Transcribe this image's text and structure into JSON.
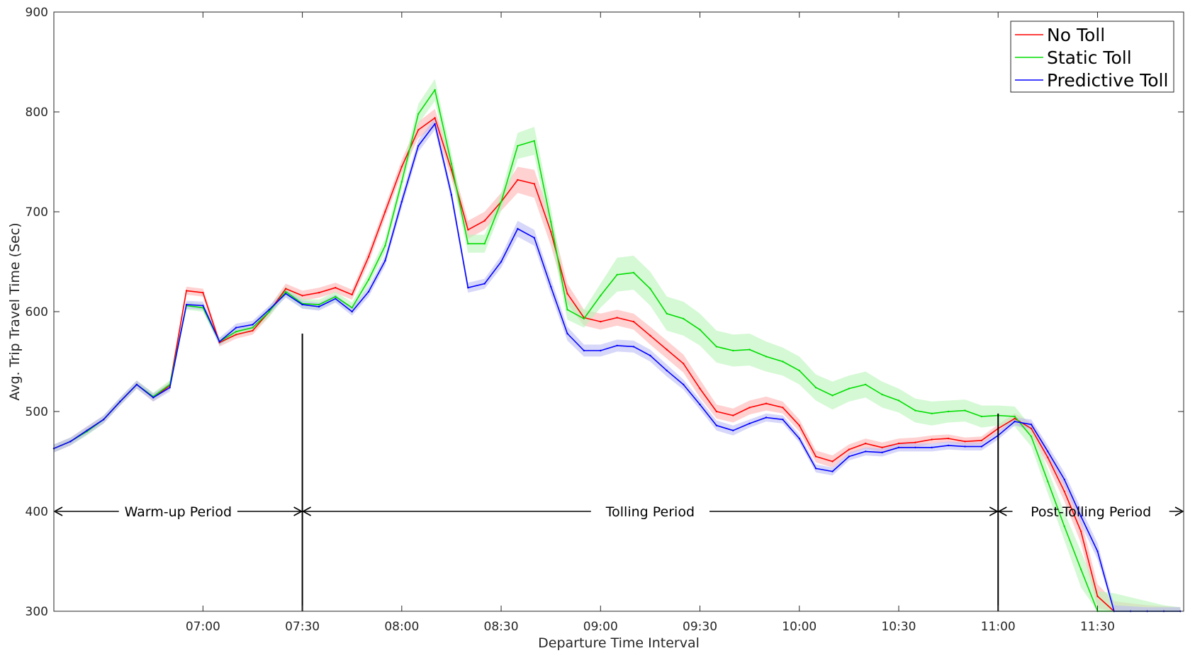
{
  "chart_data": {
    "type": "line",
    "xlabel": "Departure Time Interval",
    "ylabel": "Avg. Trip Travel Time (Sec)",
    "x_min_minutes": 375,
    "x_max_minutes": 716,
    "ylim": [
      300,
      900
    ],
    "yticks": [
      300,
      400,
      500,
      600,
      700,
      800,
      900
    ],
    "xticks": [
      {
        "label": "07:00",
        "minutes": 420
      },
      {
        "label": "07:30",
        "minutes": 450
      },
      {
        "label": "08:00",
        "minutes": 480
      },
      {
        "label": "08:30",
        "minutes": 510
      },
      {
        "label": "09:00",
        "minutes": 540
      },
      {
        "label": "09:30",
        "minutes": 570
      },
      {
        "label": "10:00",
        "minutes": 600
      },
      {
        "label": "10:30",
        "minutes": 630
      },
      {
        "label": "11:00",
        "minutes": 660
      },
      {
        "label": "11:30",
        "minutes": 690
      }
    ],
    "grid": false,
    "legend_position": "top-right",
    "x": [
      375,
      380,
      385,
      390,
      395,
      400,
      405,
      410,
      415,
      420,
      425,
      430,
      435,
      440,
      445,
      450,
      455,
      460,
      465,
      470,
      475,
      480,
      485,
      490,
      495,
      500,
      505,
      510,
      515,
      520,
      525,
      530,
      535,
      540,
      545,
      550,
      555,
      560,
      565,
      570,
      575,
      580,
      585,
      590,
      595,
      600,
      605,
      610,
      615,
      620,
      625,
      630,
      635,
      640,
      645,
      650,
      655,
      660,
      665,
      670,
      675,
      680,
      685,
      690,
      695,
      700,
      705,
      710,
      715
    ],
    "series": [
      {
        "name": "No Toll",
        "color": "#ff0000",
        "band_color": "#ffb3b3",
        "values": [
          463,
          470,
          481,
          492,
          510,
          527,
          514,
          526,
          621,
          619,
          569,
          577,
          581,
          600,
          623,
          616,
          619,
          624,
          617,
          655,
          700,
          745,
          782,
          794,
          742,
          682,
          691,
          710,
          732,
          728,
          680,
          618,
          594,
          590,
          594,
          590,
          576,
          562,
          548,
          523,
          500,
          496,
          504,
          508,
          504,
          486,
          455,
          450,
          462,
          468,
          464,
          468,
          469,
          472,
          473,
          470,
          471,
          483,
          493,
          483,
          454,
          420,
          380,
          315,
          300,
          300,
          300,
          300,
          300
        ],
        "band": [
          4,
          4,
          4,
          4,
          4,
          4,
          4,
          4,
          4,
          4,
          4,
          4,
          4,
          5,
          5,
          5,
          5,
          5,
          5,
          6,
          6,
          7,
          8,
          9,
          9,
          9,
          9,
          9,
          13,
          14,
          14,
          10,
          8,
          8,
          8,
          8,
          9,
          9,
          9,
          9,
          7,
          7,
          7,
          7,
          6,
          6,
          6,
          6,
          5,
          5,
          5,
          5,
          5,
          4,
          4,
          4,
          4,
          4,
          5,
          6,
          8,
          10,
          12,
          12,
          10,
          8,
          6,
          5,
          4
        ]
      },
      {
        "name": "Static Toll",
        "color": "#00dd00",
        "band_color": "#b8f5b8",
        "values": [
          463,
          470,
          480,
          492,
          510,
          527,
          515,
          527,
          606,
          604,
          570,
          580,
          584,
          600,
          620,
          608,
          607,
          615,
          604,
          632,
          666,
          730,
          798,
          822,
          748,
          668,
          668,
          710,
          766,
          771,
          690,
          602,
          593,
          616,
          637,
          639,
          623,
          598,
          593,
          582,
          565,
          561,
          562,
          555,
          550,
          541,
          524,
          516,
          523,
          527,
          517,
          511,
          501,
          498,
          500,
          501,
          495,
          496,
          495,
          475,
          430,
          385,
          342,
          300,
          300,
          300,
          300,
          300,
          300
        ],
        "band": [
          4,
          4,
          4,
          4,
          4,
          4,
          4,
          4,
          4,
          4,
          4,
          4,
          4,
          5,
          5,
          5,
          5,
          5,
          5,
          6,
          7,
          8,
          10,
          11,
          11,
          9,
          9,
          9,
          13,
          14,
          14,
          10,
          9,
          12,
          17,
          17,
          17,
          17,
          17,
          16,
          16,
          16,
          16,
          15,
          14,
          14,
          13,
          14,
          13,
          13,
          13,
          12,
          12,
          12,
          11,
          11,
          11,
          10,
          10,
          10,
          12,
          14,
          18,
          20,
          18,
          14,
          10,
          6,
          4
        ]
      },
      {
        "name": "Predictive Toll",
        "color": "#0000ff",
        "band_color": "#bdbdf5",
        "values": [
          463,
          470,
          481,
          492,
          510,
          527,
          514,
          524,
          607,
          606,
          570,
          584,
          587,
          602,
          618,
          607,
          605,
          613,
          600,
          620,
          651,
          710,
          766,
          788,
          717,
          624,
          628,
          650,
          683,
          674,
          625,
          578,
          561,
          561,
          566,
          565,
          556,
          541,
          527,
          507,
          486,
          481,
          488,
          494,
          492,
          473,
          443,
          440,
          455,
          460,
          459,
          464,
          464,
          464,
          466,
          465,
          465,
          476,
          490,
          487,
          460,
          432,
          395,
          360,
          300,
          300,
          300,
          300,
          300
        ],
        "band": [
          4,
          4,
          4,
          4,
          4,
          4,
          4,
          4,
          4,
          4,
          4,
          4,
          4,
          4,
          4,
          4,
          4,
          4,
          4,
          5,
          5,
          6,
          6,
          6,
          6,
          5,
          5,
          6,
          8,
          8,
          8,
          7,
          6,
          6,
          6,
          6,
          6,
          6,
          5,
          5,
          5,
          5,
          4,
          4,
          4,
          4,
          4,
          4,
          4,
          4,
          4,
          4,
          4,
          4,
          4,
          4,
          4,
          4,
          4,
          5,
          6,
          7,
          8,
          8,
          6,
          5,
          4,
          4,
          4
        ]
      }
    ],
    "annotations": {
      "arrow_y": 400,
      "periods": [
        {
          "label": "Warm-up Period",
          "start_minutes": 375,
          "end_minutes": 450
        },
        {
          "label": "Tolling Period",
          "start_minutes": 450,
          "end_minutes": 660
        },
        {
          "label": "Post-Tolling Period",
          "start_minutes": 660,
          "end_minutes": 716
        }
      ],
      "vertical_lines": [
        {
          "minutes": 450,
          "from_y": 300,
          "to_y": 578
        },
        {
          "minutes": 660,
          "from_y": 300,
          "to_y": 498
        }
      ]
    }
  }
}
